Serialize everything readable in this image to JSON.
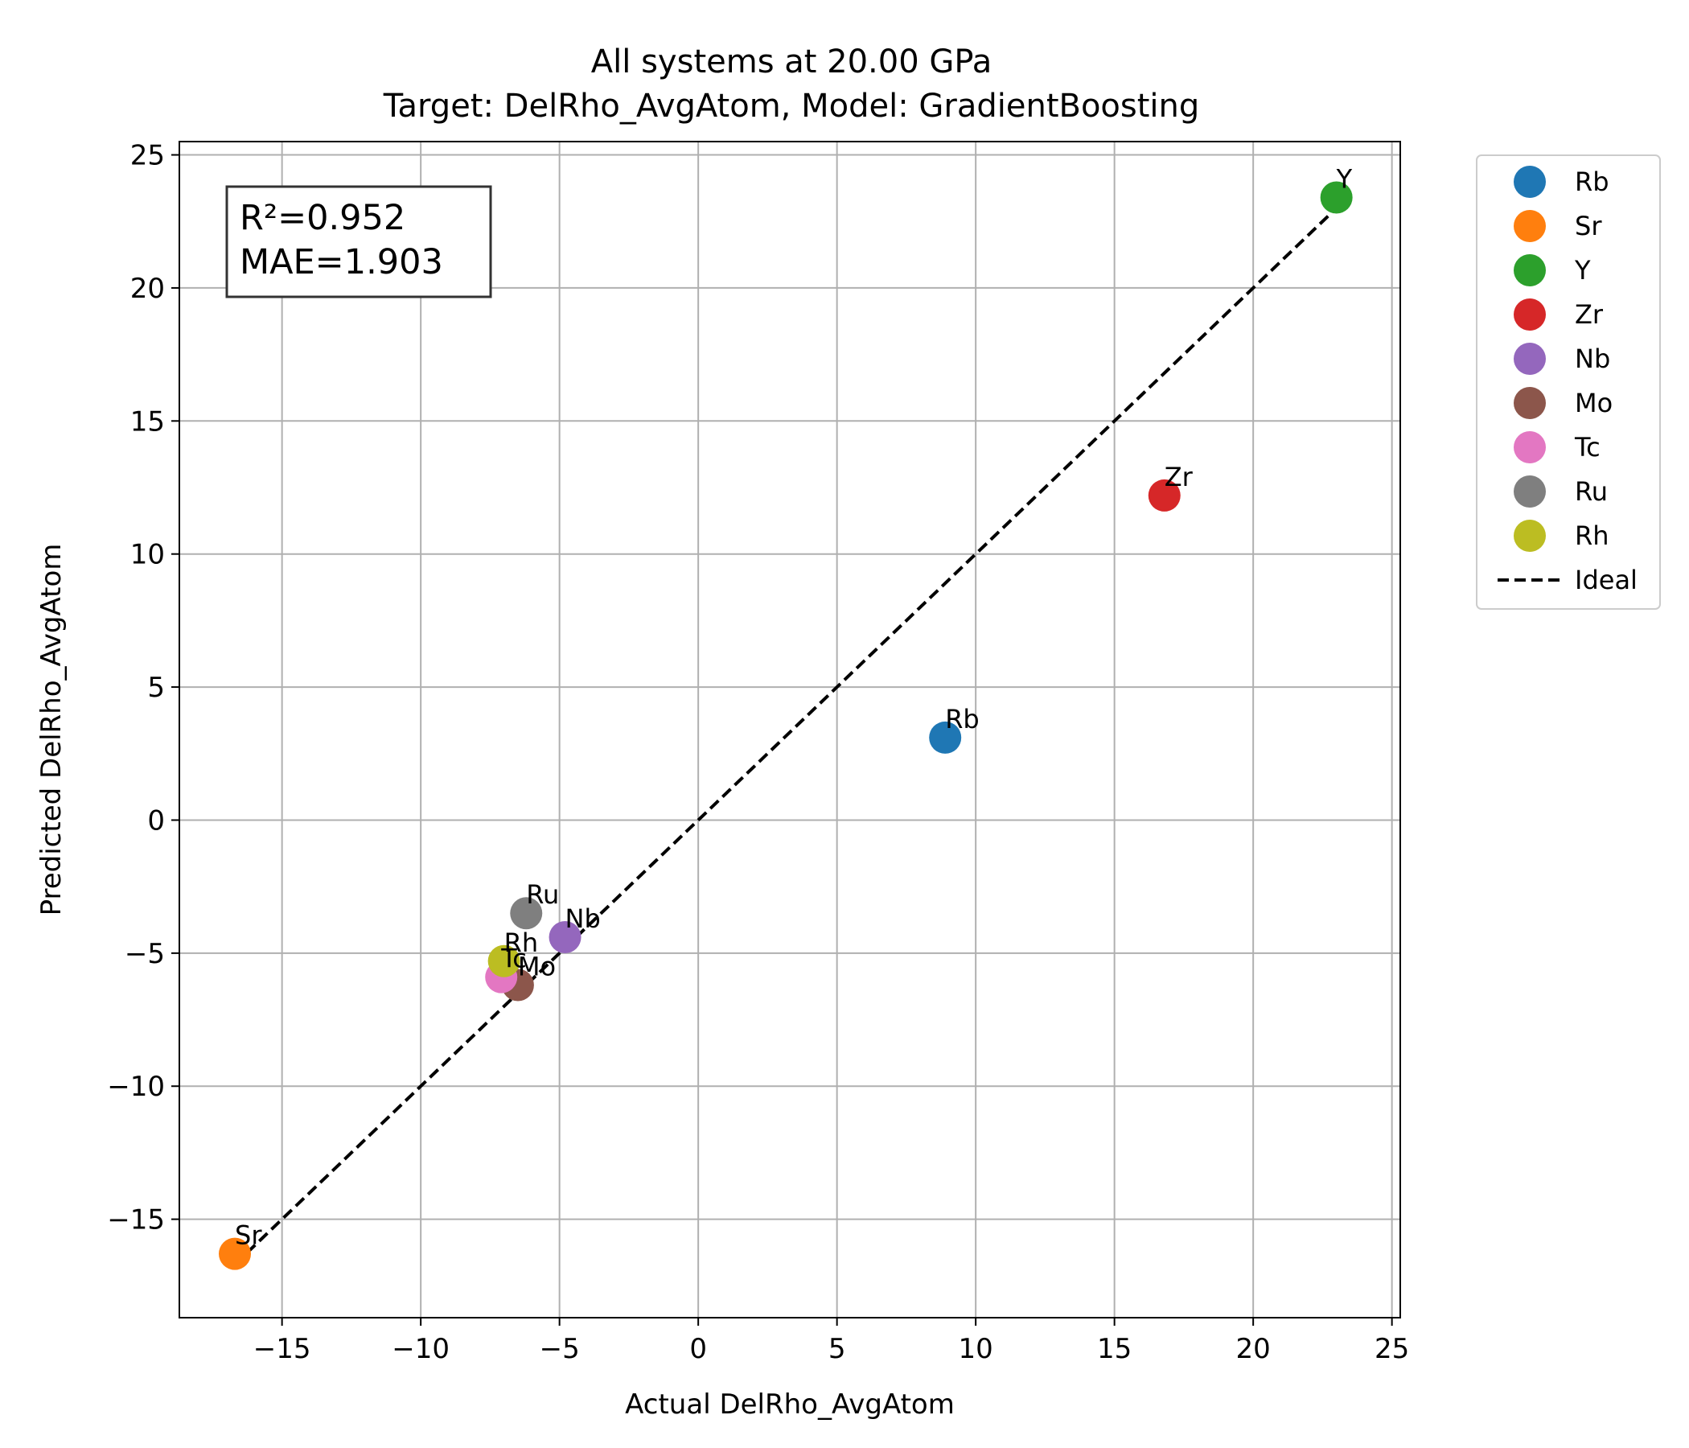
{
  "chart_data": {
    "type": "scatter",
    "title_line1": "All systems at 20.00 GPa",
    "title_line2": "Target: DelRho_AvgAtom, Model: GradientBoosting",
    "xlabel": "Actual DelRho_AvgAtom",
    "ylabel": "Predicted DelRho_AvgAtom",
    "xlim": [
      -18.7,
      25.3
    ],
    "ylim": [
      -18.7,
      25.5
    ],
    "xticks": [
      -15,
      -10,
      -5,
      0,
      5,
      10,
      15,
      20,
      25
    ],
    "yticks": [
      -15,
      -10,
      -5,
      0,
      5,
      10,
      15,
      20,
      25
    ],
    "xtick_labels": [
      "−15",
      "−10",
      "−5",
      "0",
      "5",
      "10",
      "15",
      "20",
      "25"
    ],
    "ytick_labels": [
      "−15",
      "−10",
      "−5",
      "0",
      "5",
      "10",
      "15",
      "20",
      "25"
    ],
    "grid": true,
    "legend_position": "outside-top-right",
    "stats": {
      "r2": "R²=0.952",
      "mae": "MAE=1.903"
    },
    "ideal_line": {
      "name": "Ideal",
      "from": -16.7,
      "to": 23.4,
      "color": "#000000",
      "style": "dashed"
    },
    "series": [
      {
        "name": "Rb",
        "x": 8.9,
        "y": 3.1,
        "color": "#1f77b4"
      },
      {
        "name": "Sr",
        "x": -16.7,
        "y": -16.3,
        "color": "#ff7f0e"
      },
      {
        "name": "Y",
        "x": 23.0,
        "y": 23.4,
        "color": "#2ca02c"
      },
      {
        "name": "Zr",
        "x": 16.8,
        "y": 12.2,
        "color": "#d62728"
      },
      {
        "name": "Nb",
        "x": -4.8,
        "y": -4.4,
        "color": "#9467bd"
      },
      {
        "name": "Mo",
        "x": -6.5,
        "y": -6.2,
        "color": "#8c564b"
      },
      {
        "name": "Tc",
        "x": -7.1,
        "y": -5.9,
        "color": "#e377c2"
      },
      {
        "name": "Ru",
        "x": -6.2,
        "y": -3.5,
        "color": "#7f7f7f"
      },
      {
        "name": "Rh",
        "x": -7.0,
        "y": -5.3,
        "color": "#bcbd22"
      }
    ]
  }
}
